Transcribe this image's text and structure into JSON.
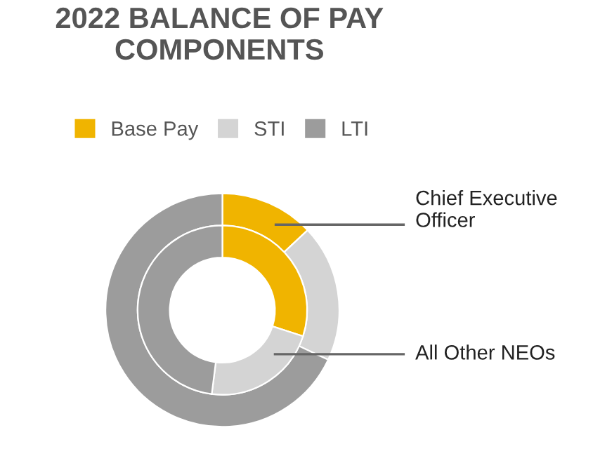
{
  "chart_data": {
    "type": "donut",
    "title": "2022 BALANCE OF PAY COMPONENTS",
    "categories": [
      "Base Pay",
      "STI",
      "LTI"
    ],
    "colors": [
      "#f0b400",
      "#d4d4d4",
      "#9c9c9c"
    ],
    "series": [
      {
        "name": "Chief Executive Officer",
        "values": [
          13,
          19,
          68
        ]
      },
      {
        "name": "All Other NEOs",
        "values": [
          30,
          22,
          48
        ]
      }
    ],
    "legend": "top"
  }
}
